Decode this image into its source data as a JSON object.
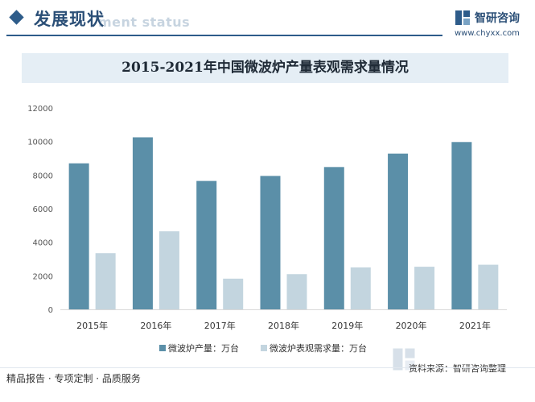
{
  "header": {
    "section_title": "发展现状",
    "section_title_en": "ment status",
    "brand_name": "智研咨询",
    "brand_url": "www.chyxx.com"
  },
  "chart_data": {
    "type": "bar",
    "title": "2015-2021年中国微波炉产量表观需求量情况",
    "categories": [
      "2015年",
      "2016年",
      "2017年",
      "2018年",
      "2019年",
      "2020年",
      "2021年"
    ],
    "series": [
      {
        "name": "微波炉产量：万台",
        "color": "#5b8fa8",
        "values": [
          8700,
          10250,
          7650,
          7950,
          8480,
          9280,
          9970
        ]
      },
      {
        "name": "微波炉表观需求量：万台",
        "color": "#c3d5df",
        "values": [
          3350,
          4650,
          1830,
          2100,
          2500,
          2540,
          2660
        ]
      }
    ],
    "yticks": [
      0,
      2000,
      4000,
      6000,
      8000,
      10000,
      12000
    ],
    "ylim": [
      0,
      12000
    ],
    "grid": false,
    "legend_position": "bottom"
  },
  "footer": {
    "source": "资料来源：智研咨询整理",
    "tagline": "精品报告 · 专项定制 · 品质服务"
  }
}
